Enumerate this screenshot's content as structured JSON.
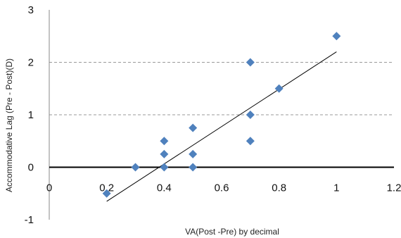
{
  "chart_data": {
    "type": "scatter",
    "xlabel": "VA(Post -Pre) by decimal",
    "ylabel": "Accommodative   Lag (Pre - Post)(D)",
    "xlim": [
      0,
      1.2
    ],
    "ylim": [
      -1,
      3
    ],
    "x_ticks": [
      "0",
      "0.2",
      "0.4",
      "0.6",
      "0.8",
      "1",
      "1.2"
    ],
    "y_ticks": [
      "-1",
      "0",
      "1",
      "2",
      "3"
    ],
    "dashed_gridlines_y": [
      1,
      2
    ],
    "bold_zero_line": true,
    "marker": "diamond",
    "marker_color": "#4f81bd",
    "trendline_color": "#000000",
    "points": [
      {
        "x": 0.2,
        "y": -0.5
      },
      {
        "x": 0.3,
        "y": 0.0
      },
      {
        "x": 0.4,
        "y": 0.0
      },
      {
        "x": 0.4,
        "y": 0.25
      },
      {
        "x": 0.4,
        "y": 0.5
      },
      {
        "x": 0.5,
        "y": 0.0
      },
      {
        "x": 0.5,
        "y": 0.25
      },
      {
        "x": 0.5,
        "y": 0.75
      },
      {
        "x": 0.7,
        "y": 0.5
      },
      {
        "x": 0.7,
        "y": 1.0
      },
      {
        "x": 0.7,
        "y": 2.0
      },
      {
        "x": 0.8,
        "y": 1.5
      },
      {
        "x": 1.0,
        "y": 2.5
      }
    ],
    "trendline": {
      "x": [
        0.2,
        1.0
      ],
      "y": [
        -0.65,
        2.2
      ]
    }
  }
}
